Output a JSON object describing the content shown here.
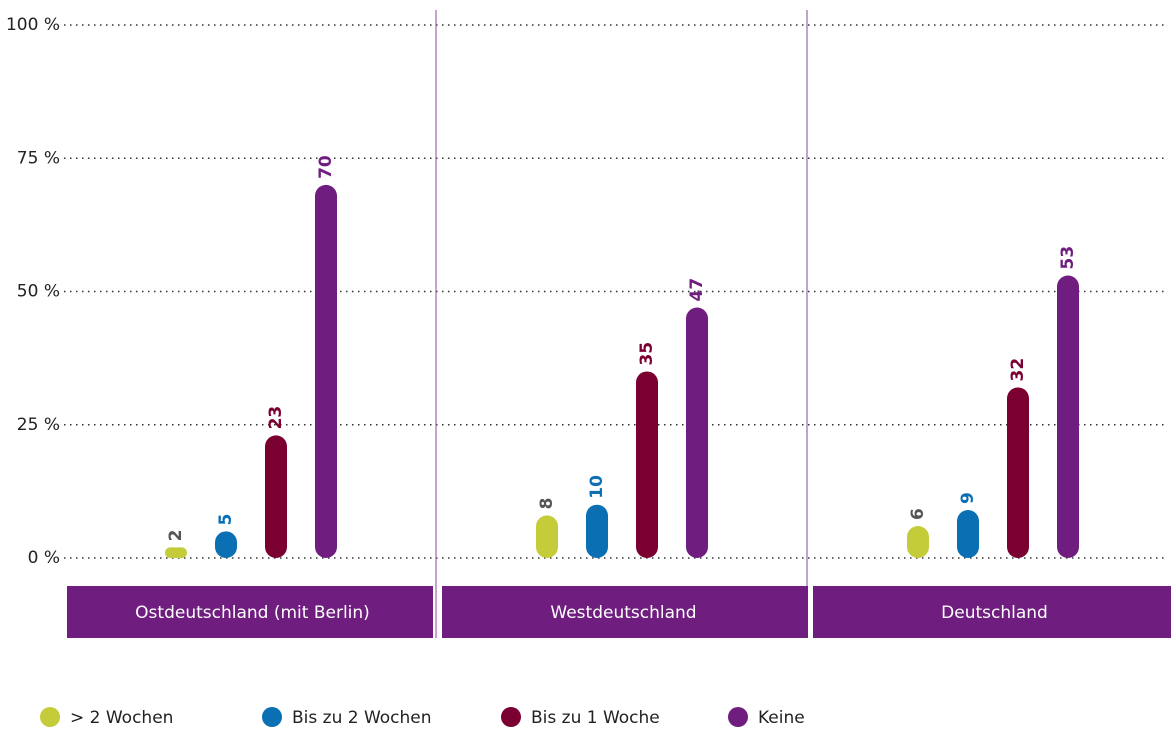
{
  "chart_data": {
    "type": "bar",
    "categories": [
      "Ostdeutschland (mit Berlin)",
      "Westdeutschland",
      "Deutschland"
    ],
    "series": [
      {
        "name": "> 2 Wochen",
        "color": "#c4cc3a",
        "label_color": "#555555",
        "values": [
          2,
          8,
          6
        ]
      },
      {
        "name": "Bis zu 2 Wochen",
        "color": "#0a6fb3",
        "label_color": "#0a6fb3",
        "values": [
          5,
          10,
          9
        ]
      },
      {
        "name": "Bis zu 1 Woche",
        "color": "#7a0032",
        "label_color": "#7a0032",
        "values": [
          23,
          35,
          32
        ]
      },
      {
        "name": "Keine",
        "color": "#6f1e80",
        "label_color": "#6f1e80",
        "values": [
          70,
          47,
          53
        ]
      }
    ],
    "ylim": [
      0,
      100
    ],
    "yticks": [
      {
        "value": 0,
        "label": "0 %"
      },
      {
        "value": 25,
        "label": "25 %"
      },
      {
        "value": 50,
        "label": "50 %"
      },
      {
        "value": 75,
        "label": "75 %"
      },
      {
        "value": 100,
        "label": "100 %"
      }
    ],
    "grid": true,
    "band_color": "#6f1e80"
  }
}
